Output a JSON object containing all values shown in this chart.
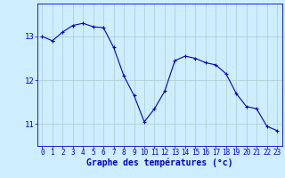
{
  "x": [
    0,
    1,
    2,
    3,
    4,
    5,
    6,
    7,
    8,
    9,
    10,
    11,
    12,
    13,
    14,
    15,
    16,
    17,
    18,
    19,
    20,
    21,
    22,
    23
  ],
  "y": [
    13.0,
    12.9,
    13.1,
    13.25,
    13.3,
    13.22,
    13.2,
    12.75,
    12.1,
    11.65,
    11.05,
    11.35,
    11.75,
    12.45,
    12.55,
    12.5,
    12.4,
    12.35,
    12.15,
    11.7,
    11.4,
    11.35,
    10.95,
    10.85
  ],
  "line_color": "#0000cc",
  "marker": "+",
  "marker_size": 3,
  "marker_lw": 0.8,
  "line_width": 0.8,
  "bg_color": "#cceeff",
  "grid_color": "#aacccc",
  "axis_color": "#0000cc",
  "xlabel": "Graphe des températures (°c)",
  "xlabel_fontsize": 7,
  "tick_fontsize": 5.5,
  "ytick_fontsize": 6.5,
  "yticks": [
    11,
    12,
    13
  ],
  "ylim": [
    10.5,
    13.75
  ],
  "xlim": [
    -0.5,
    23.5
  ],
  "xticks": [
    0,
    1,
    2,
    3,
    4,
    5,
    6,
    7,
    8,
    9,
    10,
    11,
    12,
    13,
    14,
    15,
    16,
    17,
    18,
    19,
    20,
    21,
    22,
    23
  ]
}
